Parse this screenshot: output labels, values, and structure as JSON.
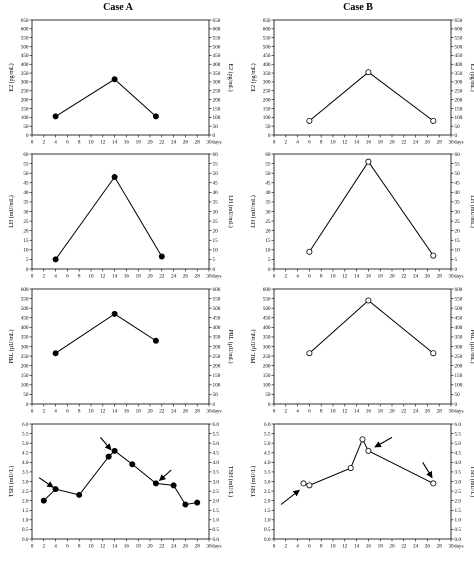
{
  "figure": {
    "column_titles": [
      "Case A",
      "Case B"
    ]
  },
  "chart_data": [
    {
      "type": "line",
      "panel": "Case A - E2",
      "ylabel": "E2 (pg/mL)",
      "y2label": "E2 (pg/mL)",
      "xlabel": "days",
      "xlim": [
        0,
        30
      ],
      "ylim": [
        0,
        650
      ],
      "ytick_step": 50,
      "marker": "filled",
      "series": [
        {
          "x": [
            4,
            14,
            21
          ],
          "y": [
            105,
            315,
            105
          ]
        }
      ],
      "arrows": []
    },
    {
      "type": "line",
      "panel": "Case B - E2",
      "ylabel": "E2 (pg/mL)",
      "y2label": "E2 (pg/mL)",
      "xlabel": "days",
      "xlim": [
        0,
        30
      ],
      "ylim": [
        0,
        650
      ],
      "ytick_step": 50,
      "marker": "open",
      "series": [
        {
          "x": [
            6,
            16,
            27
          ],
          "y": [
            80,
            355,
            80
          ]
        }
      ],
      "arrows": []
    },
    {
      "type": "line",
      "panel": "Case A - LH",
      "ylabel": "LH (mU/mL)",
      "y2label": "LH (mU/mL)",
      "xlabel": "days",
      "xlim": [
        0,
        30
      ],
      "ylim": [
        0,
        60
      ],
      "ytick_step": 5,
      "marker": "filled",
      "series": [
        {
          "x": [
            4,
            14,
            22
          ],
          "y": [
            5,
            48,
            6.5
          ]
        }
      ],
      "arrows": []
    },
    {
      "type": "line",
      "panel": "Case B - LH",
      "ylabel": "LH (mU/mL)",
      "y2label": "LH (mU/mL)",
      "xlabel": "days",
      "xlim": [
        0,
        30
      ],
      "ylim": [
        0,
        60
      ],
      "ytick_step": 5,
      "marker": "open",
      "series": [
        {
          "x": [
            6,
            16,
            27
          ],
          "y": [
            9,
            56,
            7
          ]
        }
      ],
      "arrows": []
    },
    {
      "type": "line",
      "panel": "Case A - PRL",
      "ylabel": "PRL (µU/mL)",
      "y2label": "PRL (µU/mL)",
      "xlabel": "days",
      "xlim": [
        0,
        30
      ],
      "ylim": [
        0,
        600
      ],
      "ytick_step": 50,
      "marker": "filled",
      "series": [
        {
          "x": [
            4,
            14,
            21
          ],
          "y": [
            265,
            470,
            330
          ]
        }
      ],
      "arrows": []
    },
    {
      "type": "line",
      "panel": "Case B - PRL",
      "ylabel": "PRL (µU/mL)",
      "y2label": "PRL (µU/mL)",
      "xlabel": "days",
      "xlim": [
        0,
        30
      ],
      "ylim": [
        0,
        600
      ],
      "ytick_step": 50,
      "marker": "open",
      "series": [
        {
          "x": [
            6,
            16,
            27
          ],
          "y": [
            265,
            540,
            265
          ]
        }
      ],
      "arrows": []
    },
    {
      "type": "line",
      "panel": "Case A - TSH",
      "ylabel": "TSH (mU/L)",
      "y2label": "TSH (mU/L)",
      "xlabel": "days",
      "xlim": [
        0,
        30
      ],
      "ylim": [
        0,
        6
      ],
      "ytick_step": 0.5,
      "marker": "filled",
      "series": [
        {
          "x": [
            2,
            4,
            8,
            13,
            14,
            17,
            21,
            24,
            26,
            28
          ],
          "y": [
            2.0,
            2.6,
            2.3,
            4.3,
            4.6,
            3.9,
            2.9,
            2.8,
            1.8,
            1.9
          ]
        }
      ],
      "arrows": [
        {
          "from": [
            1.2,
            3.2
          ],
          "to": [
            3.6,
            2.7
          ]
        },
        {
          "from": [
            11.6,
            5.3
          ],
          "to": [
            13.4,
            4.65
          ]
        },
        {
          "from": [
            23.6,
            3.6
          ],
          "to": [
            21.6,
            3.05
          ]
        }
      ]
    },
    {
      "type": "line",
      "panel": "Case B - TSH",
      "ylabel": "TSH (mU/L)",
      "y2label": "TSH (mU/L)",
      "xlabel": "days",
      "xlim": [
        0,
        30
      ],
      "ylim": [
        0,
        6
      ],
      "ytick_step": 0.5,
      "marker": "open",
      "series": [
        {
          "x": [
            5,
            6,
            13,
            15,
            16,
            27
          ],
          "y": [
            2.9,
            2.8,
            3.7,
            5.2,
            4.6,
            2.9
          ]
        }
      ],
      "arrows": [
        {
          "from": [
            1.2,
            1.8
          ],
          "to": [
            4.3,
            2.55
          ]
        },
        {
          "from": [
            20,
            5.3
          ],
          "to": [
            17.1,
            4.8
          ]
        },
        {
          "from": [
            25.2,
            4.0
          ],
          "to": [
            26.8,
            3.2
          ]
        }
      ]
    }
  ]
}
